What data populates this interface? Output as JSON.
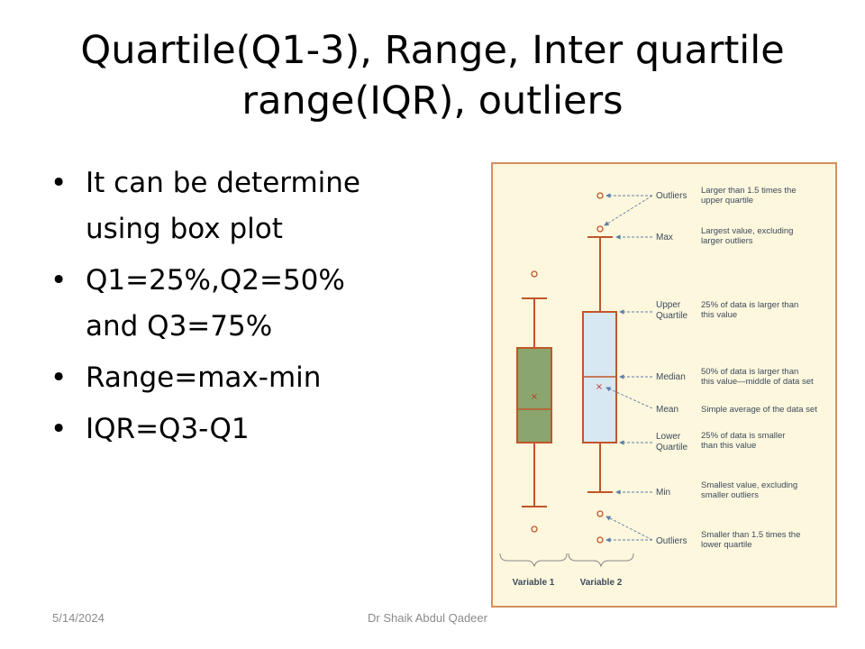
{
  "title": {
    "line1": "Quartile(Q1-3), Range, Inter quartile",
    "line2": "range(IQR), outliers"
  },
  "bullets": [
    "It can be determine using box plot",
    "Q1=25%,Q2=50% and Q3=75%",
    "Range=max-min",
    "IQR=Q3-Q1"
  ],
  "diagram": {
    "variables": [
      "Variable 1",
      "Variable 2"
    ],
    "annotations": [
      {
        "term": [
          "Outliers"
        ],
        "desc": [
          "Larger than 1.5 times the",
          "upper quartile"
        ]
      },
      {
        "term": [
          "Max"
        ],
        "desc": [
          "Largest value, excluding",
          "larger outliers"
        ]
      },
      {
        "term": [
          "Upper",
          "Quartile"
        ],
        "desc": [
          "25% of data is larger than",
          "this value"
        ]
      },
      {
        "term": [
          "Median"
        ],
        "desc": [
          "50% of data is larger than",
          "this value—middle of data set"
        ]
      },
      {
        "term": [
          "Mean"
        ],
        "desc": [
          "Simple average of the data set"
        ]
      },
      {
        "term": [
          "Lower",
          "Quartile"
        ],
        "desc": [
          "25% of data is smaller",
          "than this value"
        ]
      },
      {
        "term": [
          "Min"
        ],
        "desc": [
          "Smallest value, excluding",
          "smaller outliers"
        ]
      },
      {
        "term": [
          "Outliers"
        ],
        "desc": [
          "Smaller than 1.5 times the",
          "lower quartile"
        ]
      }
    ],
    "colors": {
      "frame": "#d58f5e",
      "background": "#fdf7dd",
      "whisker": "#c0562b",
      "box1_fill": "#8aa56d",
      "box2_fill": "#d8e8f2",
      "mean_marker": "#c0392b",
      "leader": "#5b7fa8",
      "text": "#3c4a5c"
    }
  },
  "footer": {
    "date": "5/14/2024",
    "author": "Dr Shaik Abdul Qadeer"
  }
}
